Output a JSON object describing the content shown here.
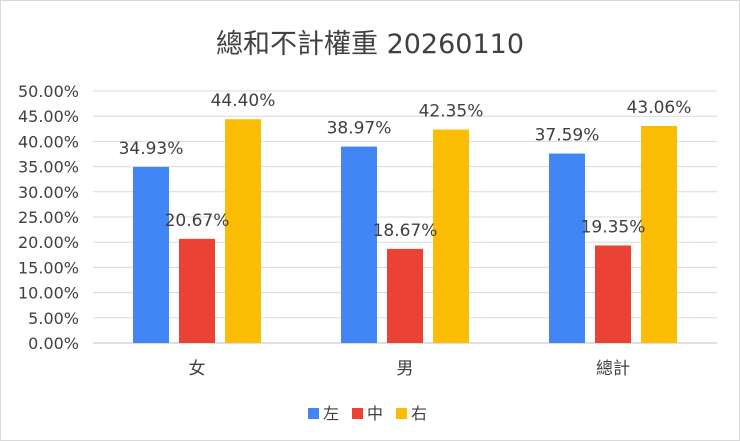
{
  "chart_data": {
    "type": "bar",
    "title": "總和不計權重 20260110",
    "categories": [
      "女",
      "男",
      "總計"
    ],
    "series": [
      {
        "name": "左",
        "color": "#4285f4",
        "values": [
          34.93,
          38.97,
          37.59
        ],
        "labels": [
          "34.93%",
          "38.97%",
          "37.59%"
        ]
      },
      {
        "name": "中",
        "color": "#ea4335",
        "values": [
          20.67,
          18.67,
          19.35
        ],
        "labels": [
          "20.67%",
          "18.67%",
          "19.35%"
        ]
      },
      {
        "name": "右",
        "color": "#fbbc04",
        "values": [
          44.4,
          42.35,
          43.06
        ],
        "labels": [
          "44.40%",
          "42.35%",
          "43.06%"
        ]
      }
    ],
    "ylim": [
      0,
      50
    ],
    "yticks": [
      "0.00%",
      "5.00%",
      "10.00%",
      "15.00%",
      "20.00%",
      "25.00%",
      "30.00%",
      "35.00%",
      "40.00%",
      "45.00%",
      "50.00%"
    ],
    "grid": true,
    "legend_position": "bottom"
  }
}
